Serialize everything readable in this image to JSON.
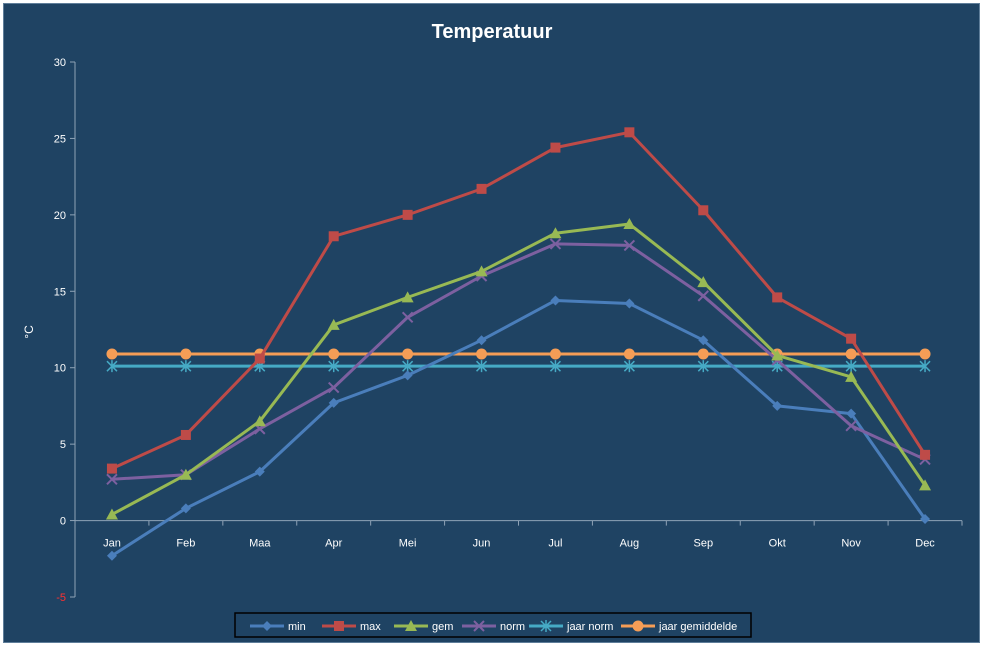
{
  "chart_data": {
    "type": "line",
    "title": "Temperatuur",
    "xlabel": "",
    "ylabel": "°C",
    "ylim": [
      -5,
      30
    ],
    "yticks": [
      -5,
      0,
      5,
      10,
      15,
      20,
      25,
      30
    ],
    "ytick_labels": [
      "-5",
      "0",
      "5",
      "10",
      "15",
      "20",
      "25",
      "30"
    ],
    "categories": [
      "Jan",
      "Feb",
      "Maa",
      "Apr",
      "Mei",
      "Jun",
      "Jul",
      "Aug",
      "Sep",
      "Okt",
      "Nov",
      "Dec"
    ],
    "grid": false,
    "legend_position": "bottom",
    "background": "#1f4363",
    "series": [
      {
        "name": "min",
        "color": "#4a7ebb",
        "marker": "diamond",
        "values": [
          -2.3,
          0.8,
          3.2,
          7.7,
          9.5,
          11.8,
          14.4,
          14.2,
          11.8,
          7.5,
          7.0,
          0.1
        ]
      },
      {
        "name": "max",
        "color": "#be4b48",
        "marker": "square",
        "values": [
          3.4,
          5.6,
          10.6,
          18.6,
          20.0,
          21.7,
          24.4,
          25.4,
          20.3,
          14.6,
          11.9,
          4.3
        ]
      },
      {
        "name": "gem",
        "color": "#98b954",
        "marker": "triangle",
        "values": [
          0.4,
          3.0,
          6.5,
          12.8,
          14.6,
          16.3,
          18.8,
          19.4,
          15.6,
          10.8,
          9.4,
          2.3
        ]
      },
      {
        "name": "norm",
        "color": "#7d60a0",
        "marker": "x",
        "values": [
          2.7,
          3.0,
          6.0,
          8.7,
          13.3,
          16.0,
          18.1,
          18.0,
          14.7,
          10.5,
          6.2,
          4.0
        ]
      },
      {
        "name": "jaar norm",
        "color": "#46aac5",
        "marker": "star",
        "values": [
          10.1,
          10.1,
          10.1,
          10.1,
          10.1,
          10.1,
          10.1,
          10.1,
          10.1,
          10.1,
          10.1,
          10.1
        ]
      },
      {
        "name": "jaar gemiddelde",
        "color": "#f59d56",
        "marker": "circle",
        "values": [
          10.9,
          10.9,
          10.9,
          10.9,
          10.9,
          10.9,
          10.9,
          10.9,
          10.9,
          10.9,
          10.9,
          10.9
        ]
      }
    ]
  }
}
